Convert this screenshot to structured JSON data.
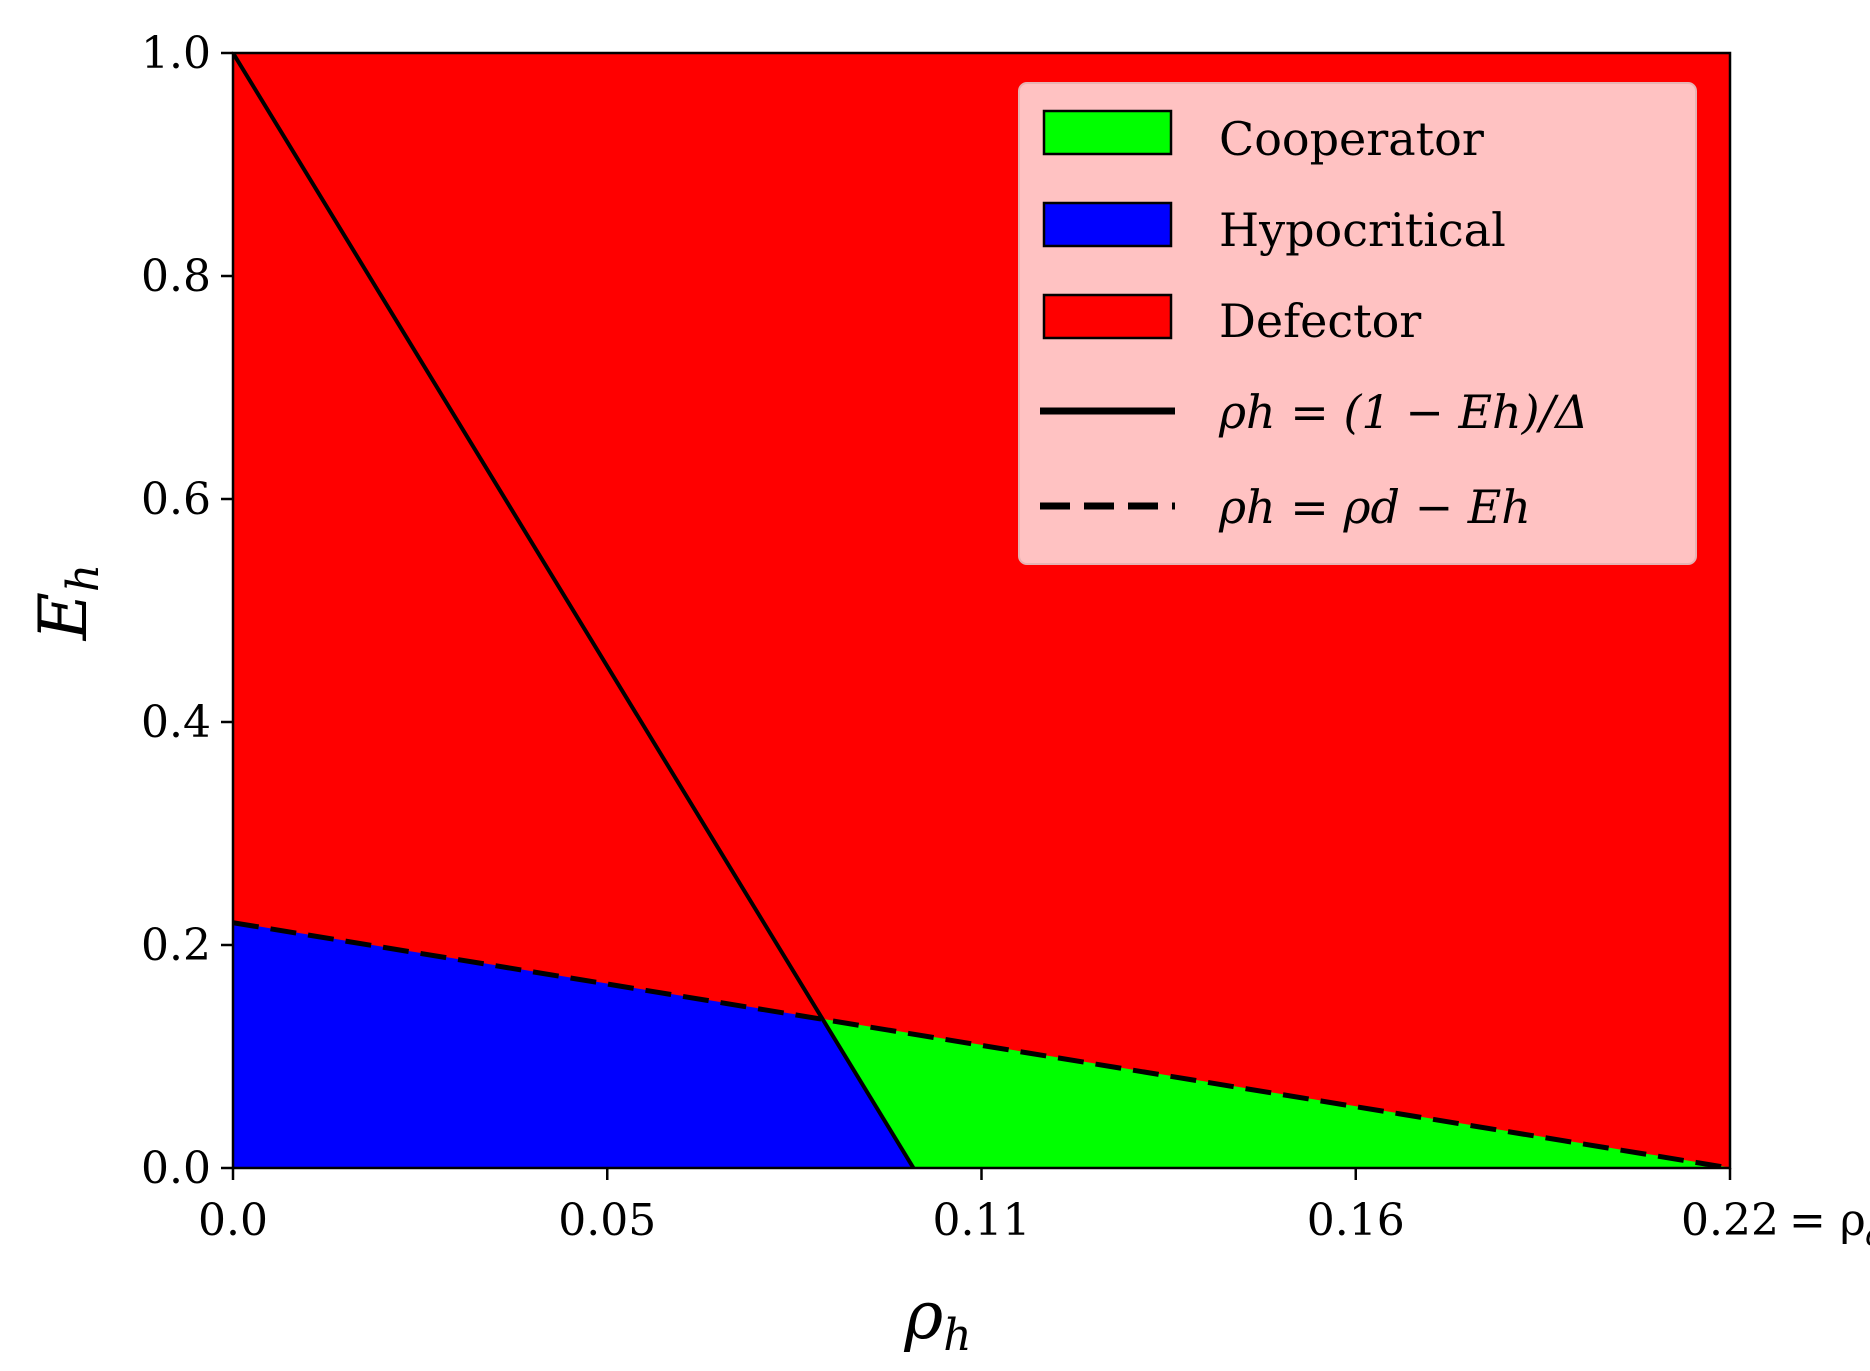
{
  "chart_data": {
    "type": "area",
    "xlabel_main": "ρ",
    "xlabel_sub": "h",
    "ylabel_main": "E",
    "ylabel_sub": "h",
    "xlim": [
      0,
      0.22
    ],
    "ylim": [
      0,
      1.0
    ],
    "x_ticks": [
      0,
      0.055,
      0.11,
      0.165,
      0.22
    ],
    "x_tick_labels": [
      "0.0",
      "0.05",
      "0.11",
      "0.16",
      "0.22"
    ],
    "x_last_tick_suffix": "= ρ",
    "x_last_tick_suffix_sub": "d",
    "y_ticks": [
      0,
      0.2,
      0.4,
      0.6,
      0.8,
      1.0
    ],
    "y_tick_labels": [
      "0.0",
      "0.2",
      "0.4",
      "0.6",
      "0.8",
      "1.0"
    ],
    "grid": false,
    "legend_placement": "top-right",
    "regions": [
      {
        "name": "Defector",
        "color": "#ff0000",
        "polygon": [
          [
            0,
            0.22
          ],
          [
            0.22,
            0
          ],
          [
            0.22,
            1.0
          ],
          [
            0,
            1.0
          ]
        ]
      },
      {
        "name": "Hypocritical",
        "color": "#0000ff",
        "polygon": [
          [
            0,
            0
          ],
          [
            0.1,
            0
          ],
          [
            0.0867,
            0.1333
          ],
          [
            0,
            0.22
          ]
        ]
      },
      {
        "name": "Cooperator",
        "color": "#00ff00",
        "polygon": [
          [
            0.1,
            0
          ],
          [
            0.22,
            0
          ],
          [
            0.0867,
            0.1333
          ]
        ]
      }
    ],
    "lines": [
      {
        "name": "ρh = (1 − Eh)/Δ",
        "style": "solid",
        "color": "#000000",
        "x": [
          0,
          0.1
        ],
        "y": [
          1.0,
          0
        ]
      },
      {
        "name": "ρh = ρd − Eh",
        "style": "dashed",
        "color": "#000000",
        "x": [
          0,
          0.22
        ],
        "y": [
          0.22,
          0
        ]
      }
    ],
    "legend": {
      "cooperator_label": "Cooperator",
      "hypocritical_label": "Hypocritical",
      "defector_label": "Defector",
      "solid_line_label": "ρh = (1 − Eh)/Δ",
      "dashed_line_label": "ρh = ρd − Eh",
      "background": "#ffcccc"
    }
  }
}
